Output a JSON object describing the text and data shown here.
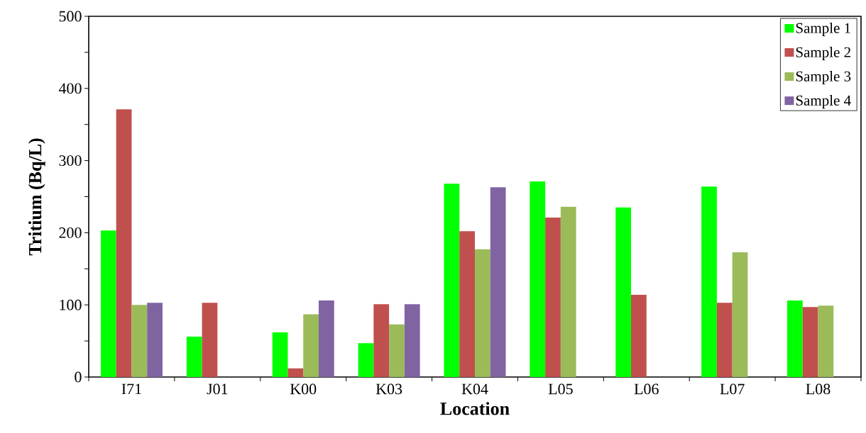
{
  "chart_data": {
    "type": "bar",
    "xlabel": "Location",
    "ylabel": "Tritium (Bq/L)",
    "categories": [
      "I71",
      "J01",
      "K00",
      "K03",
      "K04",
      "L05",
      "L06",
      "L07",
      "L08"
    ],
    "series": [
      {
        "name": "Sample 1",
        "color": "#00ff00",
        "values": [
          203,
          56,
          62,
          47,
          268,
          271,
          235,
          264,
          106
        ]
      },
      {
        "name": "Sample 2",
        "color": "#c0504d",
        "values": [
          371,
          103,
          12,
          101,
          202,
          221,
          114,
          103,
          97
        ]
      },
      {
        "name": "Sample 3",
        "color": "#9bbb59",
        "values": [
          100,
          null,
          87,
          73,
          177,
          236,
          null,
          173,
          99
        ]
      },
      {
        "name": "Sample 4",
        "color": "#8064a2",
        "values": [
          103,
          null,
          106,
          101,
          263,
          null,
          null,
          null,
          null
        ]
      }
    ],
    "ylim": [
      0,
      500
    ],
    "yticks": [
      0,
      100,
      200,
      300,
      400,
      500
    ],
    "grid": false,
    "legend": "top right"
  }
}
